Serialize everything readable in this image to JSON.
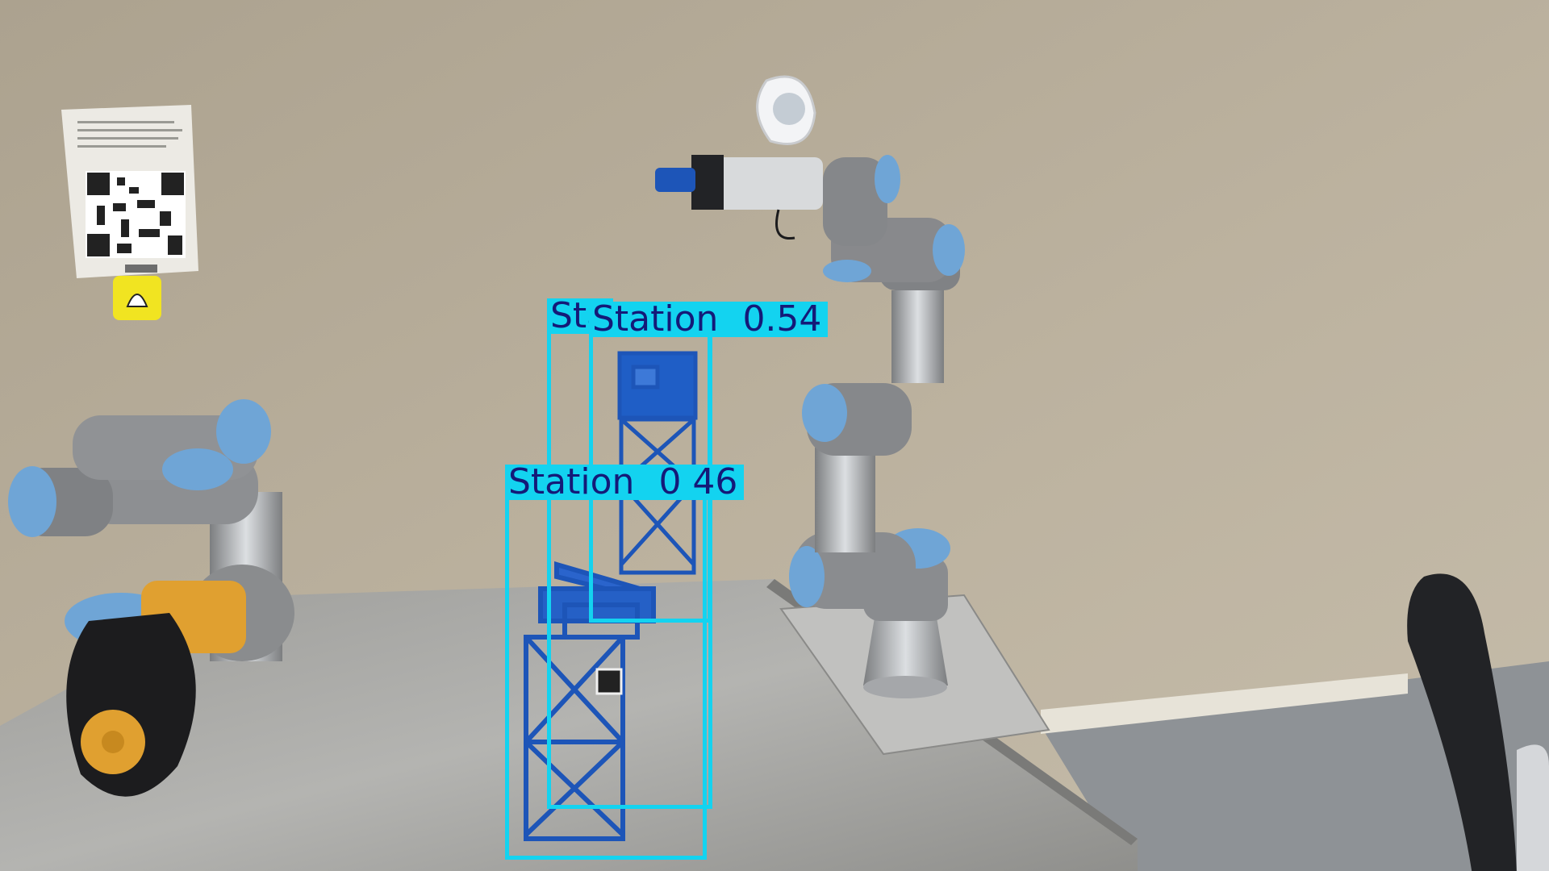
{
  "detections": [
    {
      "label": "Station",
      "confidence": "",
      "clipped": true
    },
    {
      "label": "Station",
      "confidence": "0.54"
    },
    {
      "label": "Station",
      "confidence": "0 46"
    }
  ],
  "colors": {
    "box": "#13d3f0",
    "label_text": "#141a78",
    "wall": "#b7ad9b",
    "table": "#a9a9a6",
    "robot_blue": "#6fa5d6",
    "tower_blue": "#1d55b8",
    "gripper_orange": "#e0a030"
  }
}
